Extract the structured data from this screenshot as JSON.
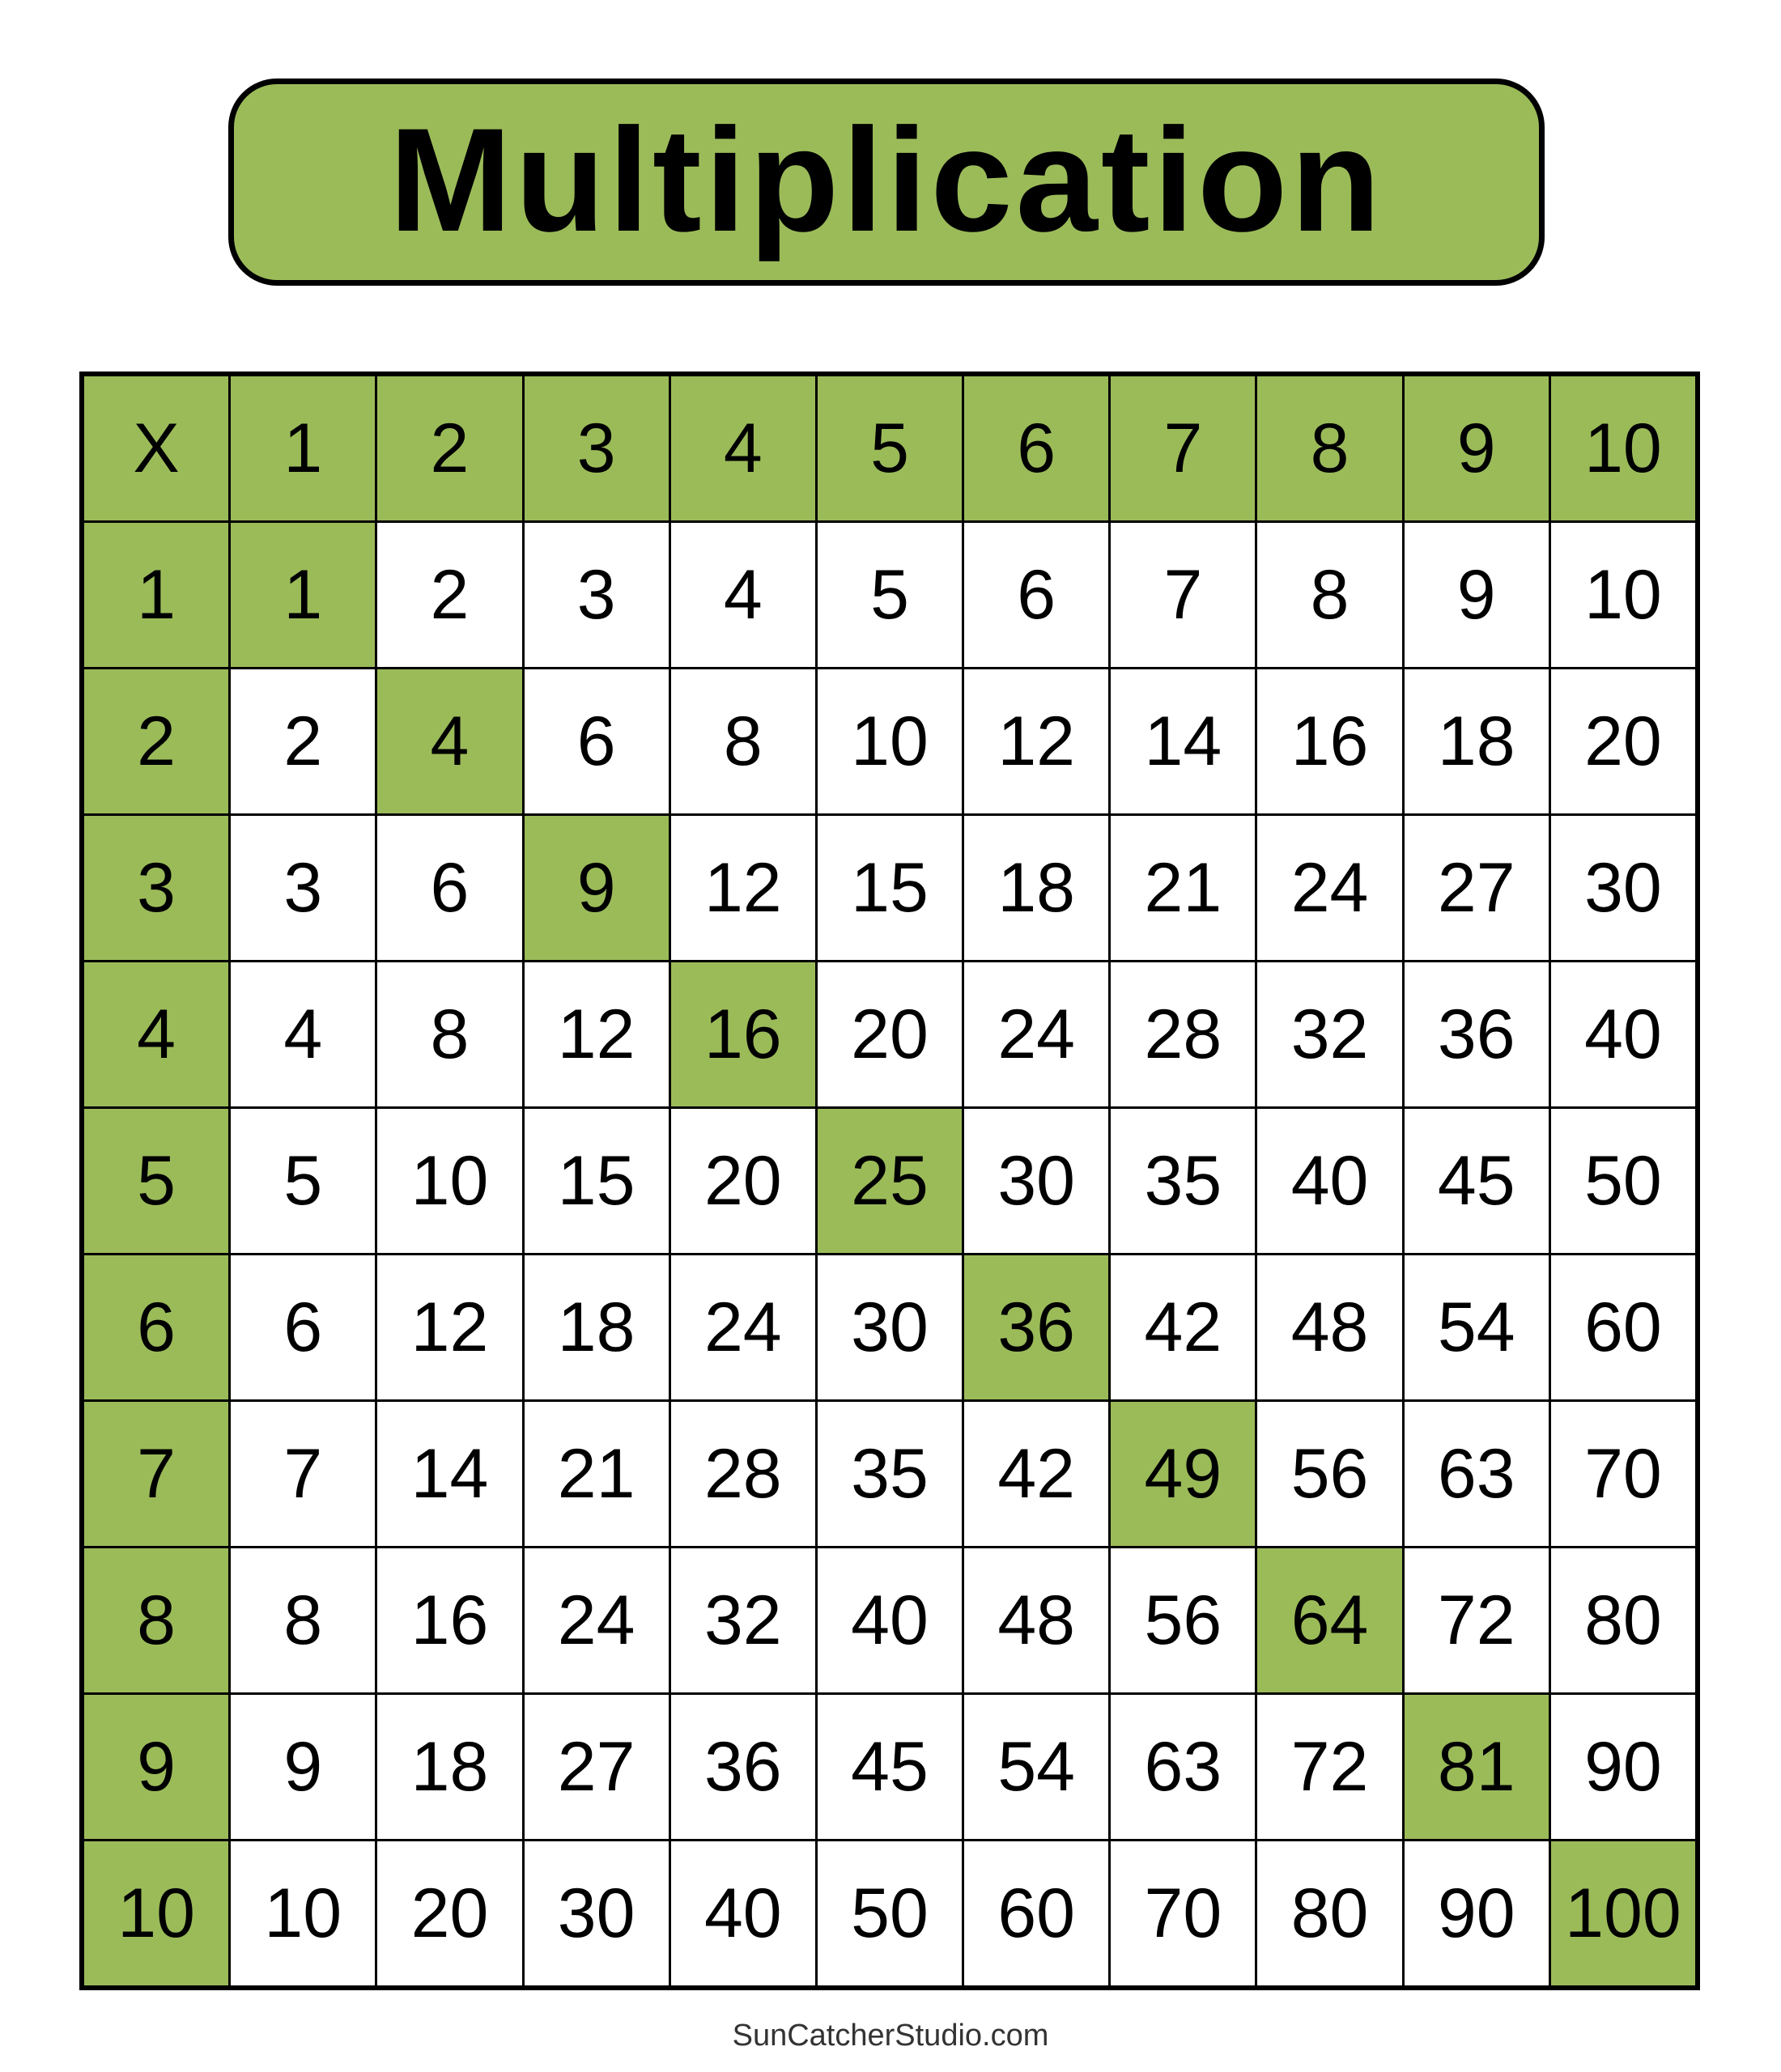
{
  "title": "Multiplication",
  "accent_color": "#9BBB59",
  "table": {
    "corner": "X",
    "column_headers": [
      "1",
      "2",
      "3",
      "4",
      "5",
      "6",
      "7",
      "8",
      "9",
      "10"
    ],
    "rows": [
      {
        "header": "1",
        "cells": [
          "1",
          "2",
          "3",
          "4",
          "5",
          "6",
          "7",
          "8",
          "9",
          "10"
        ]
      },
      {
        "header": "2",
        "cells": [
          "2",
          "4",
          "6",
          "8",
          "10",
          "12",
          "14",
          "16",
          "18",
          "20"
        ]
      },
      {
        "header": "3",
        "cells": [
          "3",
          "6",
          "9",
          "12",
          "15",
          "18",
          "21",
          "24",
          "27",
          "30"
        ]
      },
      {
        "header": "4",
        "cells": [
          "4",
          "8",
          "12",
          "16",
          "20",
          "24",
          "28",
          "32",
          "36",
          "40"
        ]
      },
      {
        "header": "5",
        "cells": [
          "5",
          "10",
          "15",
          "20",
          "25",
          "30",
          "35",
          "40",
          "45",
          "50"
        ]
      },
      {
        "header": "6",
        "cells": [
          "6",
          "12",
          "18",
          "24",
          "30",
          "36",
          "42",
          "48",
          "54",
          "60"
        ]
      },
      {
        "header": "7",
        "cells": [
          "7",
          "14",
          "21",
          "28",
          "35",
          "42",
          "49",
          "56",
          "63",
          "70"
        ]
      },
      {
        "header": "8",
        "cells": [
          "8",
          "16",
          "24",
          "32",
          "40",
          "48",
          "56",
          "64",
          "72",
          "80"
        ]
      },
      {
        "header": "9",
        "cells": [
          "9",
          "18",
          "27",
          "36",
          "45",
          "54",
          "63",
          "72",
          "81",
          "90"
        ]
      },
      {
        "header": "10",
        "cells": [
          "10",
          "20",
          "30",
          "40",
          "50",
          "60",
          "70",
          "80",
          "90",
          "100"
        ]
      }
    ],
    "highlight": "diagonal squares"
  },
  "footer": "SunCatcherStudio.com"
}
